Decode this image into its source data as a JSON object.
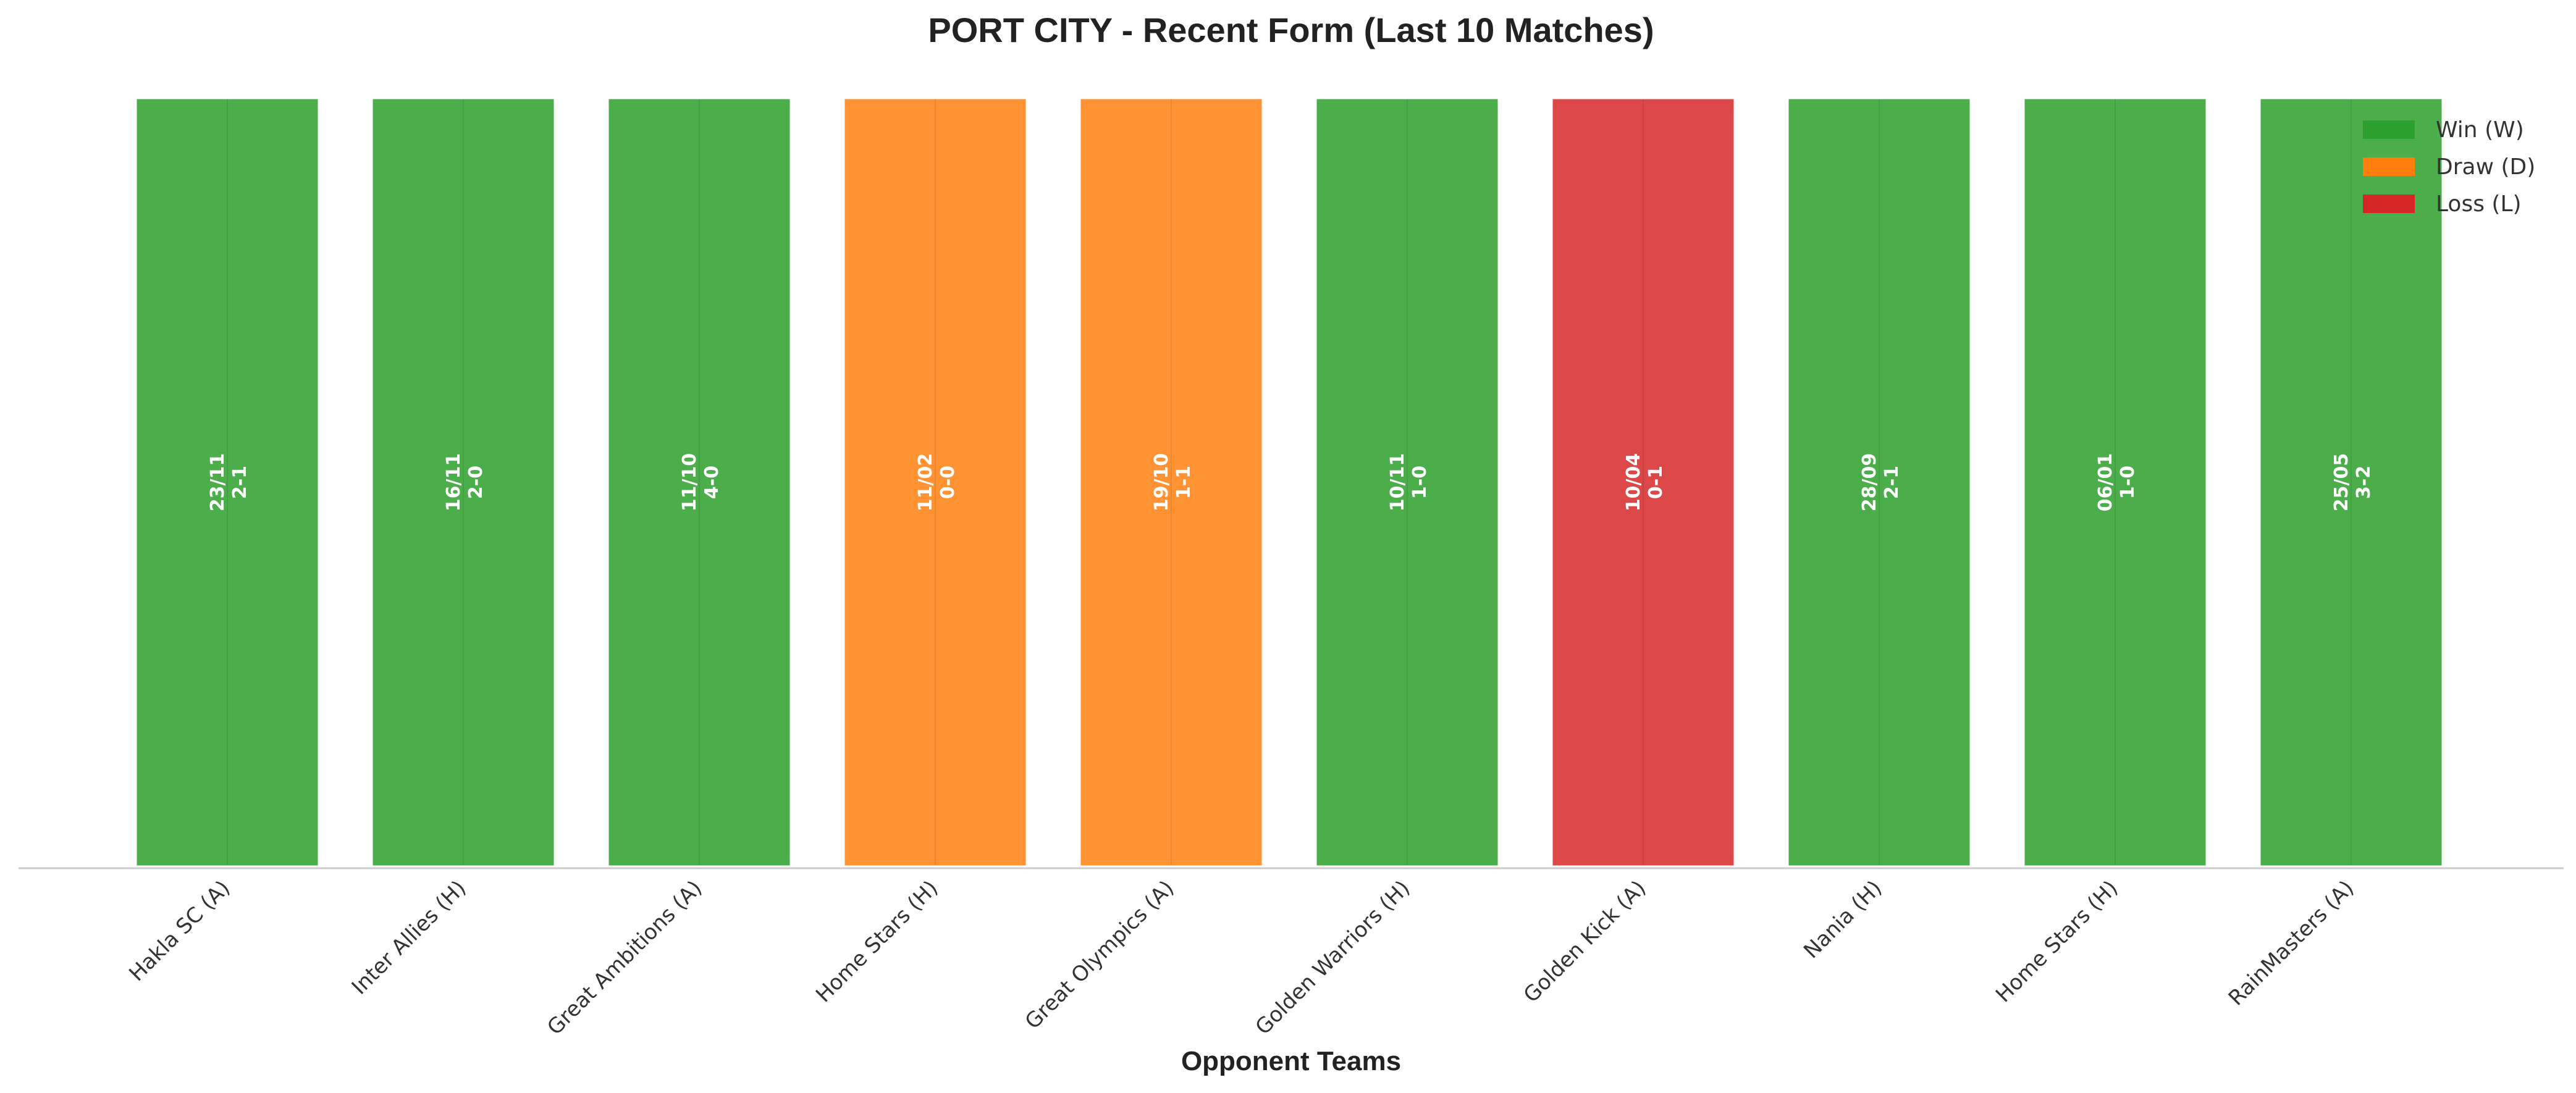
{
  "chart_data": {
    "type": "bar",
    "title": "PORT CITY - Recent Form (Last 10 Matches)",
    "xlabel": "Opponent Teams",
    "ylabel": "",
    "grid": false,
    "legend_position": "top-right",
    "categories": [
      "Hakla SC (A)",
      "Inter Allies (H)",
      "Great Ambitions (A)",
      "Home Stars (H)",
      "Great Olympics (A)",
      "Golden Warriors (H)",
      "Golden Kick (A)",
      "Nania (H)",
      "Home Stars (H)",
      "RainMasters (A)"
    ],
    "values": [
      1,
      1,
      1,
      1,
      1,
      1,
      1,
      1,
      1,
      1
    ],
    "results": [
      "W",
      "W",
      "W",
      "D",
      "D",
      "W",
      "L",
      "W",
      "W",
      "W"
    ],
    "dates": [
      "23/11",
      "16/11",
      "11/10",
      "11/02",
      "19/10",
      "10/11",
      "10/04",
      "28/09",
      "06/01",
      "25/05"
    ],
    "scores": [
      "2-1",
      "2-0",
      "4-0",
      "0-0",
      "1-1",
      "1-0",
      "0-1",
      "2-1",
      "1-0",
      "3-2"
    ],
    "legend": [
      {
        "key": "W",
        "label": "Win (W)",
        "color": "#2ca02c"
      },
      {
        "key": "D",
        "label": "Draw (D)",
        "color": "#ff7f0e"
      },
      {
        "key": "L",
        "label": "Loss (L)",
        "color": "#d62728"
      }
    ]
  }
}
